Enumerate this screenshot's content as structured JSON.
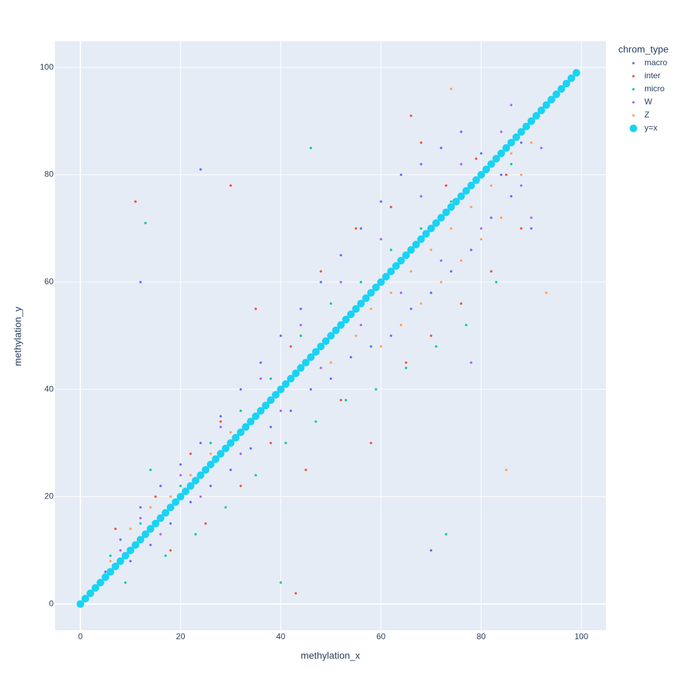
{
  "chart_data": {
    "type": "scatter",
    "xlabel": "methylation_x",
    "ylabel": "methylation_y",
    "legend_title": "chrom_type",
    "legend": "top-right",
    "grid": true,
    "xlim": [
      -5.07,
      104.9
    ],
    "ylim": [
      -4.9,
      104.9
    ],
    "xticks": [
      0,
      20,
      40,
      60,
      80,
      100
    ],
    "yticks": [
      0,
      20,
      40,
      60,
      80,
      100
    ],
    "series": [
      {
        "name": "macro",
        "color": "#636efa",
        "marker_size": 3.5,
        "x": [
          5,
          8,
          10,
          12,
          14,
          16,
          18,
          20,
          22,
          24,
          26,
          28,
          30,
          32,
          34,
          36,
          38,
          40,
          42,
          44,
          46,
          48,
          50,
          52,
          54,
          56,
          58,
          60,
          62,
          64,
          66,
          68,
          70,
          72,
          74,
          76,
          78,
          80,
          82,
          84,
          86,
          88,
          90,
          24,
          12,
          70
        ],
        "y": [
          6,
          12,
          8,
          18,
          11,
          22,
          15,
          26,
          19,
          30,
          22,
          35,
          25,
          40,
          29,
          45,
          33,
          50,
          36,
          55,
          40,
          60,
          42,
          65,
          46,
          70,
          48,
          75,
          50,
          80,
          55,
          82,
          58,
          85,
          62,
          88,
          66,
          84,
          72,
          80,
          76,
          86,
          70,
          81,
          60,
          10
        ]
      },
      {
        "name": "inter",
        "color": "#EF553B",
        "marker_size": 3.5,
        "x": [
          7,
          11,
          15,
          18,
          22,
          25,
          28,
          32,
          35,
          38,
          42,
          45,
          48,
          52,
          55,
          58,
          62,
          65,
          68,
          70,
          73,
          76,
          79,
          82,
          85,
          88,
          66,
          43,
          30
        ],
        "y": [
          14,
          75,
          20,
          10,
          28,
          15,
          34,
          22,
          55,
          30,
          48,
          25,
          62,
          38,
          70,
          30,
          74,
          45,
          86,
          50,
          78,
          56,
          83,
          62,
          80,
          70,
          91,
          2,
          78
        ]
      },
      {
        "name": "micro",
        "color": "#00cc96",
        "marker_size": 3.5,
        "x": [
          6,
          9,
          12,
          14,
          17,
          20,
          23,
          26,
          29,
          32,
          35,
          38,
          41,
          44,
          47,
          50,
          53,
          56,
          59,
          62,
          65,
          68,
          71,
          74,
          77,
          80,
          83,
          86,
          46,
          13,
          40,
          73
        ],
        "y": [
          9,
          4,
          15,
          25,
          9,
          22,
          13,
          30,
          18,
          36,
          24,
          42,
          30,
          50,
          34,
          56,
          38,
          60,
          40,
          66,
          44,
          70,
          48,
          75,
          52,
          80,
          60,
          82,
          85,
          71,
          4,
          13
        ]
      },
      {
        "name": "W",
        "color": "#ab63fa",
        "marker_size": 3.5,
        "x": [
          8,
          12,
          16,
          20,
          24,
          28,
          32,
          36,
          40,
          44,
          48,
          52,
          56,
          60,
          64,
          68,
          72,
          76,
          80,
          84,
          88,
          90,
          92,
          78,
          86
        ],
        "y": [
          10,
          16,
          13,
          24,
          20,
          33,
          28,
          42,
          36,
          52,
          44,
          60,
          52,
          68,
          58,
          76,
          64,
          82,
          70,
          88,
          78,
          72,
          85,
          45,
          93
        ]
      },
      {
        "name": "Z",
        "color": "#FFA15A",
        "marker_size": 3.5,
        "x": [
          6,
          10,
          14,
          18,
          22,
          26,
          30,
          40,
          50,
          55,
          58,
          60,
          62,
          64,
          66,
          68,
          70,
          72,
          74,
          76,
          78,
          80,
          82,
          84,
          86,
          88,
          90,
          74,
          85,
          93
        ],
        "y": [
          8,
          14,
          18,
          20,
          24,
          28,
          32,
          40,
          45,
          50,
          55,
          48,
          58,
          52,
          62,
          56,
          66,
          60,
          70,
          64,
          74,
          68,
          78,
          72,
          84,
          80,
          86,
          96,
          25,
          58
        ]
      },
      {
        "name": "y=x",
        "color": "#19d3f3",
        "marker_size": 11,
        "x": [
          0,
          1,
          2,
          3,
          4,
          5,
          6,
          7,
          8,
          9,
          10,
          11,
          12,
          13,
          14,
          15,
          16,
          17,
          18,
          19,
          20,
          21,
          22,
          23,
          24,
          25,
          26,
          27,
          28,
          29,
          30,
          31,
          32,
          33,
          34,
          35,
          36,
          37,
          38,
          39,
          40,
          41,
          42,
          43,
          44,
          45,
          46,
          47,
          48,
          49,
          50,
          51,
          52,
          53,
          54,
          55,
          56,
          57,
          58,
          59,
          60,
          61,
          62,
          63,
          64,
          65,
          66,
          67,
          68,
          69,
          70,
          71,
          72,
          73,
          74,
          75,
          76,
          77,
          78,
          79,
          80,
          81,
          82,
          83,
          84,
          85,
          86,
          87,
          88,
          89,
          90,
          91,
          92,
          93,
          94,
          95,
          96,
          97,
          98,
          99
        ],
        "y": [
          0,
          1,
          2,
          3,
          4,
          5,
          6,
          7,
          8,
          9,
          10,
          11,
          12,
          13,
          14,
          15,
          16,
          17,
          18,
          19,
          20,
          21,
          22,
          23,
          24,
          25,
          26,
          27,
          28,
          29,
          30,
          31,
          32,
          33,
          34,
          35,
          36,
          37,
          38,
          39,
          40,
          41,
          42,
          43,
          44,
          45,
          46,
          47,
          48,
          49,
          50,
          51,
          52,
          53,
          54,
          55,
          56,
          57,
          58,
          59,
          60,
          61,
          62,
          63,
          64,
          65,
          66,
          67,
          68,
          69,
          70,
          71,
          72,
          73,
          74,
          75,
          76,
          77,
          78,
          79,
          80,
          81,
          82,
          83,
          84,
          85,
          86,
          87,
          88,
          89,
          90,
          91,
          92,
          93,
          94,
          95,
          96,
          97,
          98,
          99
        ]
      }
    ]
  }
}
